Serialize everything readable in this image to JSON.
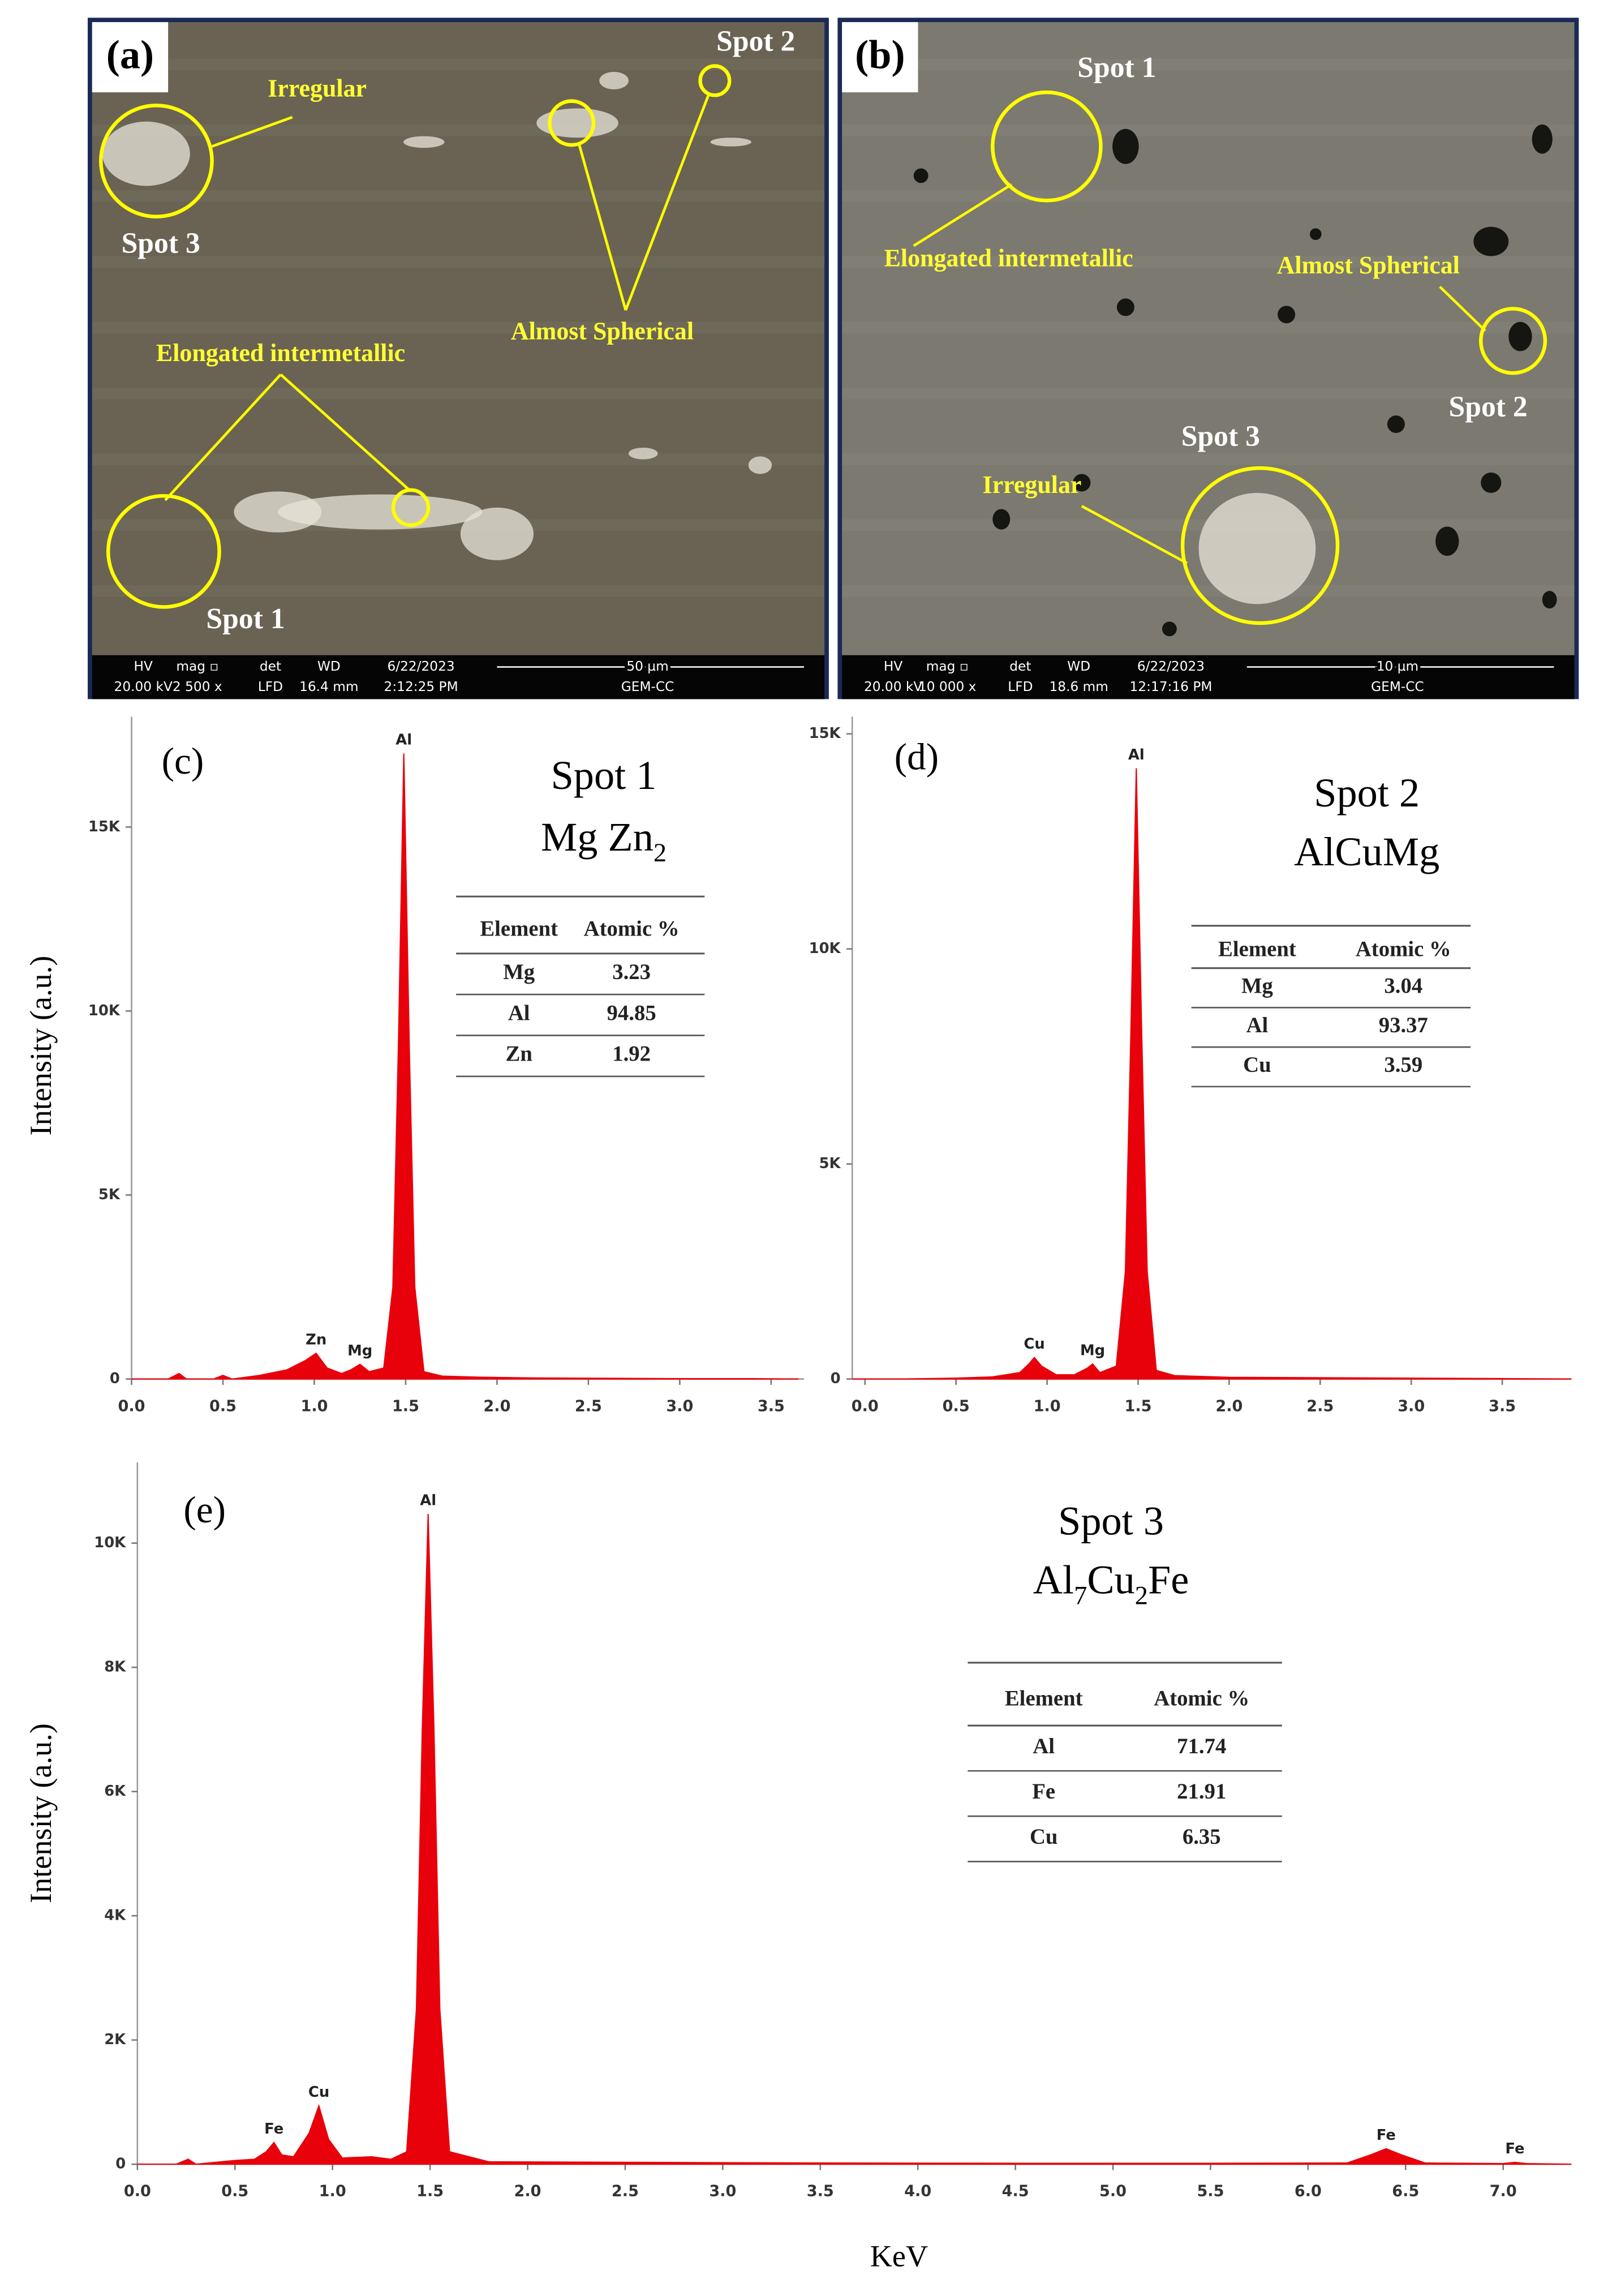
{
  "sem_panels": [
    {
      "label": "(a)",
      "annotations": [
        "Spot 2",
        "Irregular",
        "Spot 3",
        "Almost Spherical",
        "Elongated intermetallic",
        "Spot 1"
      ],
      "info_bar": {
        "headers": [
          "HV",
          "mag ▫",
          "det",
          "WD",
          "6/22/2023"
        ],
        "values": [
          "20.00 kV",
          "2 500 x",
          "LFD",
          "16.4 mm",
          "2:12:25 PM"
        ],
        "scale": "50 µm",
        "lab": "GEM-CC"
      }
    },
    {
      "label": "(b)",
      "annotations": [
        "Spot 1",
        "Elongated intermetallic",
        "Almost Spherical",
        "Spot 2",
        "Spot 3",
        "Irregular"
      ],
      "info_bar": {
        "headers": [
          "HV",
          "mag ▫",
          "det",
          "WD",
          "6/22/2023"
        ],
        "values": [
          "20.00 kV",
          "10 000 x",
          "LFD",
          "18.6 mm",
          "12:17:16 PM"
        ],
        "scale": "10 µm",
        "lab": "GEM-CC"
      }
    }
  ],
  "chart_data": [
    {
      "type": "area",
      "panel_label": "(c)",
      "title": "Spot 1",
      "formula": [
        {
          "text": "Mg Zn"
        },
        {
          "text": "2",
          "sub": true
        }
      ],
      "ylabel": "Intensity (a.u.)",
      "color": "#e8000b",
      "x": [
        0,
        0.2,
        0.26,
        0.3,
        0.45,
        0.5,
        0.55,
        0.7,
        0.85,
        0.95,
        1.01,
        1.07,
        1.15,
        1.2,
        1.25,
        1.3,
        1.38,
        1.43,
        1.46,
        1.49,
        1.52,
        1.55,
        1.6,
        1.7,
        1.9,
        2.2,
        2.6,
        3.0,
        3.4,
        3.65
      ],
      "values": [
        0,
        0,
        150,
        0,
        0,
        100,
        0,
        100,
        250,
        500,
        700,
        300,
        150,
        250,
        400,
        200,
        300,
        2500,
        9000,
        17000,
        9000,
        2500,
        200,
        80,
        50,
        30,
        20,
        10,
        10,
        0
      ],
      "peaks": [
        {
          "label": "Zn",
          "x": 1.01
        },
        {
          "label": "Mg",
          "x": 1.25
        },
        {
          "label": "Al",
          "x": 1.49
        }
      ],
      "xlim": [
        0,
        3.68
      ],
      "ylim": [
        0,
        18000
      ],
      "xticks": [
        {
          "value": 0,
          "label": "0.0"
        },
        {
          "value": 0.5,
          "label": "0.5"
        },
        {
          "value": 1,
          "label": "1.0"
        },
        {
          "value": 1.5,
          "label": "1.5"
        },
        {
          "value": 2,
          "label": "2.0"
        },
        {
          "value": 2.5,
          "label": "2.5"
        },
        {
          "value": 3,
          "label": "3.0"
        },
        {
          "value": 3.5,
          "label": "3.5"
        }
      ],
      "yticks": [
        0,
        {
          "value": 5000,
          "label": "5K"
        },
        {
          "value": 10000,
          "label": "10K"
        },
        {
          "value": 15000,
          "label": "15K"
        }
      ],
      "table": {
        "header": [
          "Element",
          "Atomic %"
        ],
        "rows": [
          [
            "Mg",
            3.23
          ],
          [
            "Al",
            94.85
          ],
          [
            "Zn",
            1.92
          ]
        ]
      }
    },
    {
      "type": "area",
      "panel_label": "(d)",
      "title": "Spot 2",
      "formula": [
        {
          "text": "AlCuMg"
        }
      ],
      "color": "#e8000b",
      "x": [
        -0.07,
        0.2,
        0.5,
        0.7,
        0.85,
        0.9,
        0.93,
        0.97,
        1.05,
        1.15,
        1.22,
        1.25,
        1.29,
        1.38,
        1.43,
        1.46,
        1.49,
        1.52,
        1.55,
        1.6,
        1.7,
        2.0,
        2.5,
        3.0,
        3.5,
        3.88
      ],
      "values": [
        0,
        0,
        20,
        50,
        150,
        350,
        500,
        300,
        100,
        100,
        250,
        350,
        150,
        300,
        2500,
        8000,
        14200,
        8000,
        2500,
        200,
        80,
        40,
        30,
        20,
        10,
        0
      ],
      "peaks": [
        {
          "label": "Cu",
          "x": 0.93
        },
        {
          "label": "Mg",
          "x": 1.25
        },
        {
          "label": "Al",
          "x": 1.49
        }
      ],
      "xlim": [
        -0.07,
        3.88
      ],
      "ylim": [
        0,
        15400
      ],
      "xticks": [
        {
          "value": 0,
          "label": "0.0"
        },
        {
          "value": 0.5,
          "label": "0.5"
        },
        {
          "value": 1,
          "label": "1.0"
        },
        {
          "value": 1.5,
          "label": "1.5"
        },
        {
          "value": 2,
          "label": "2.0"
        },
        {
          "value": 2.5,
          "label": "2.5"
        },
        {
          "value": 3,
          "label": "3.0"
        },
        {
          "value": 3.5,
          "label": "3.5"
        }
      ],
      "yticks": [
        0,
        {
          "value": 5000,
          "label": "5K"
        },
        {
          "value": 10000,
          "label": "10K"
        },
        {
          "value": 15000,
          "label": "15K"
        }
      ],
      "table": {
        "header": [
          "Element",
          "Atomic %"
        ],
        "rows": [
          [
            "Mg",
            3.04
          ],
          [
            "Al",
            93.37
          ],
          [
            "Cu",
            3.59
          ]
        ]
      }
    },
    {
      "type": "area",
      "panel_label": "(e)",
      "title": "Spot 3",
      "formula": [
        {
          "text": "Al"
        },
        {
          "text": "7",
          "sub": true
        },
        {
          "text": "Cu"
        },
        {
          "text": "2",
          "sub": true
        },
        {
          "text": "Fe"
        }
      ],
      "ylabel": "Intensity (a.u.)",
      "xlabel": "KeV",
      "color": "#e8000b",
      "x": [
        0,
        0.2,
        0.26,
        0.3,
        0.5,
        0.6,
        0.66,
        0.7,
        0.74,
        0.8,
        0.88,
        0.93,
        0.98,
        1.05,
        1.2,
        1.3,
        1.38,
        1.43,
        1.46,
        1.49,
        1.52,
        1.55,
        1.6,
        1.8,
        2.5,
        3.5,
        4.5,
        5.5,
        6.2,
        6.32,
        6.4,
        6.48,
        6.6,
        7.0,
        7.06,
        7.12,
        7.35
      ],
      "values": [
        0,
        0,
        80,
        0,
        60,
        80,
        200,
        350,
        150,
        120,
        500,
        940,
        400,
        100,
        120,
        80,
        200,
        2500,
        7000,
        10470,
        7000,
        2500,
        200,
        40,
        30,
        20,
        15,
        15,
        20,
        150,
        250,
        150,
        20,
        10,
        30,
        10,
        0
      ],
      "peaks": [
        {
          "label": "Fe",
          "x": 0.7
        },
        {
          "label": "Cu",
          "x": 0.93
        },
        {
          "label": "Al",
          "x": 1.49
        },
        {
          "label": "Fe",
          "x": 6.4
        },
        {
          "label": "Fe",
          "x": 7.06
        }
      ],
      "xlim": [
        0,
        7.35
      ],
      "ylim": [
        0,
        11300
      ],
      "xticks": [
        {
          "value": 0,
          "label": "0.0"
        },
        {
          "value": 0.5,
          "label": "0.5"
        },
        {
          "value": 1,
          "label": "1.0"
        },
        {
          "value": 1.5,
          "label": "1.5"
        },
        {
          "value": 2,
          "label": "2.0"
        },
        {
          "value": 2.5,
          "label": "2.5"
        },
        {
          "value": 3,
          "label": "3.0"
        },
        {
          "value": 3.5,
          "label": "3.5"
        },
        {
          "value": 4,
          "label": "4.0"
        },
        {
          "value": 4.5,
          "label": "4.5"
        },
        {
          "value": 5,
          "label": "5.0"
        },
        {
          "value": 5.5,
          "label": "5.5"
        },
        {
          "value": 6,
          "label": "6.0"
        },
        {
          "value": 6.5,
          "label": "6.5"
        },
        {
          "value": 7,
          "label": "7.0"
        }
      ],
      "yticks": [
        0,
        {
          "value": 2000,
          "label": "2K"
        },
        {
          "value": 4000,
          "label": "4K"
        },
        {
          "value": 6000,
          "label": "6K"
        },
        {
          "value": 8000,
          "label": "8K"
        },
        {
          "value": 10000,
          "label": "10K"
        }
      ],
      "table": {
        "header": [
          "Element",
          "Atomic %"
        ],
        "rows": [
          [
            "Al",
            71.74
          ],
          [
            "Fe",
            21.91
          ],
          [
            "Cu",
            6.35
          ]
        ]
      }
    }
  ]
}
